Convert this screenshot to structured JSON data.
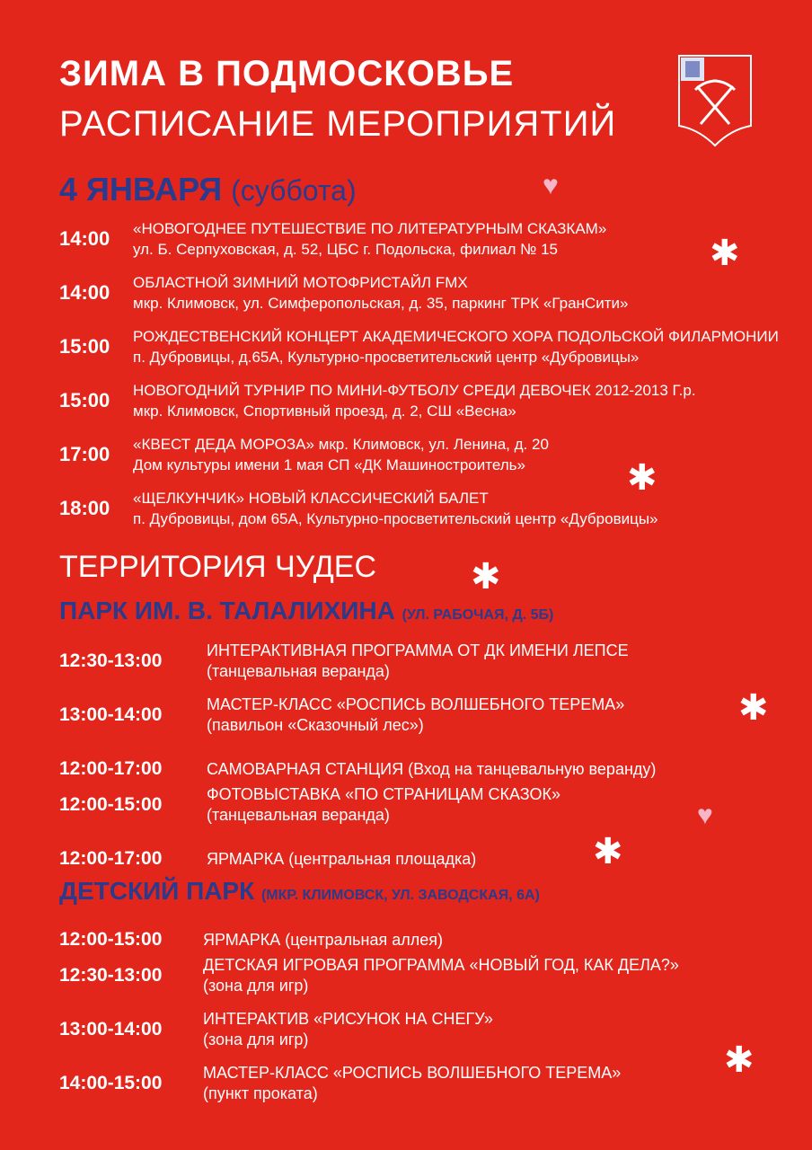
{
  "header": {
    "title": "ЗИМА В ПОДМОСКОВЬЕ",
    "subtitle": "РАСПИСАНИЕ МЕРОПРИЯТИЙ"
  },
  "emblem": "coat-of-arms-icon",
  "day": {
    "date": "4 ЯНВАРЯ",
    "weekday": "(суббота)"
  },
  "events": [
    {
      "time": "14:00",
      "title": "«НОВОГОДНЕЕ ПУТЕШЕСТВИЕ ПО ЛИТЕРАТУРНЫМ СКАЗКАМ»",
      "place": "ул. Б. Серпуховская, д. 52, ЦБС г. Подольска, филиал № 15"
    },
    {
      "time": "14:00",
      "title": "ОБЛАСТНОЙ ЗИМНИЙ МОТОФРИСТАЙЛ FMX",
      "place": "мкр. Климовск, ул. Симферопольская, д. 35, паркинг ТРК «ГранСити»"
    },
    {
      "time": "15:00",
      "title": "РОЖДЕСТВЕНСКИЙ КОНЦЕРТ АКАДЕМИЧЕСКОГО ХОРА  ПОДОЛЬСКОЙ ФИЛАРМОНИИ",
      "place": "п. Дубровицы, д.65А, Культурно-просветительский центр «Дубровицы»"
    },
    {
      "time": "15:00",
      "title": "НОВОГОДНИЙ ТУРНИР ПО МИНИ-ФУТБОЛУ СРЕДИ ДЕВОЧЕК 2012-2013 Г.р.",
      "place": "мкр. Климовск, Спортивный проезд, д. 2, СШ «Весна»"
    },
    {
      "time": "17:00",
      "title": "«КВЕСТ ДЕДА МОРОЗА» мкр. Климовск, ул. Ленина, д. 20",
      "place": "Дом культуры имени 1 мая СП «ДК Машиностроитель»"
    },
    {
      "time": "18:00",
      "title": "«ЩЕЛКУНЧИК» НОВЫЙ КЛАССИЧЕСКИЙ БАЛЕТ",
      "place": "п. Дубровицы, дом 65А, Культурно-просветительский центр «Дубровицы»"
    }
  ],
  "territory": "ТЕРРИТОРИЯ ЧУДЕС",
  "parks": [
    {
      "name": "ПАРК ИМ. В. ТАЛАЛИХИНА",
      "address": "(УЛ. РАБОЧАЯ, Д. 5Б)",
      "items": [
        {
          "time": "12:30-13:00",
          "title": "ИНТЕРАКТИВНАЯ ПРОГРАММА ОТ ДК ИМЕНИ ЛЕПСЕ",
          "place": "(танцевальная веранда)"
        },
        {
          "time": "13:00-14:00",
          "title": "МАСТЕР-КЛАСС «РОСПИСЬ ВОЛШЕБНОГО ТЕРЕМА»",
          "place": "(павильон «Сказочный лес»)"
        },
        {
          "time": "12:00-17:00",
          "title": "САМОВАРНАЯ СТАНЦИЯ (Вход на танцевальную веранду)",
          "place": ""
        },
        {
          "time": "12:00-15:00",
          "title": "ФОТОВЫСТАВКА «ПО СТРАНИЦАМ СКАЗОК»",
          "place": "(танцевальная веранда)"
        },
        {
          "time": "12:00-17:00",
          "title": "ЯРМАРКА (центральная площадка)",
          "place": ""
        }
      ]
    },
    {
      "name": "ДЕТСКИЙ ПАРК",
      "address": "(МКР. КЛИМОВСК, УЛ. ЗАВОДСКАЯ, 6А)",
      "items": [
        {
          "time": "12:00-15:00",
          "title": "ЯРМАРКА (центральная аллея)",
          "place": ""
        },
        {
          "time": "12:30-13:00",
          "title": "ДЕТСКАЯ ИГРОВАЯ ПРОГРАММА «НОВЫЙ ГОД, КАК ДЕЛА?»",
          "place": "(зона для игр)"
        },
        {
          "time": "13:00-14:00",
          "title": "ИНТЕРАКТИВ «РИСУНОК НА СНЕГУ»",
          "place": "(зона для игр)"
        },
        {
          "time": "14:00-15:00",
          "title": "МАСТЕР-КЛАСС «РОСПИСЬ ВОЛШЕБНОГО ТЕРЕМА»",
          "place": "(пункт проката)"
        }
      ]
    }
  ],
  "colors": {
    "background": "#e2261c",
    "accent": "#2a3a8c",
    "heart": "#f7b6c8"
  }
}
